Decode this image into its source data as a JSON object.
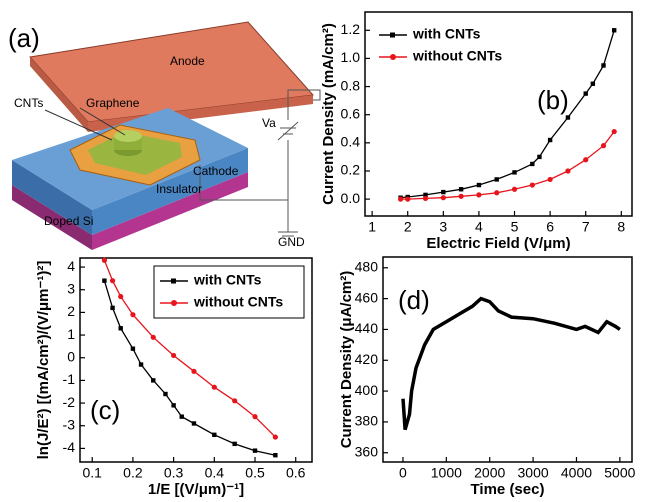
{
  "diagram": {
    "panel_label": "(a)",
    "anode": "Anode",
    "graphene": "Graphene",
    "cnts": "CNTs",
    "va": "Va",
    "cathode": "Cathode",
    "insulator": "Insulator",
    "doped_si": "Doped Si",
    "gnd": "GND"
  },
  "chart_data": [
    {
      "type": "line",
      "label": "(b)",
      "x_label": "Electric Field (V/μm)",
      "y_label": "Current Density (mA/cm²)",
      "xlim": [
        0.8,
        8.3
      ],
      "xticks": [
        1,
        2,
        3,
        4,
        5,
        6,
        7,
        8
      ],
      "ylim": [
        -0.12,
        1.33
      ],
      "yticks": [
        {
          "value": 0,
          "label": "0.0"
        },
        0.2,
        0.4,
        0.6,
        0.8,
        {
          "value": 1,
          "label": "1.0"
        },
        1.2
      ],
      "legend": "upper left",
      "series": [
        {
          "name": "with CNTs",
          "color": "#000000",
          "marker": "square",
          "x": [
            1.8,
            2.0,
            2.5,
            3.0,
            3.5,
            4.0,
            4.5,
            5.0,
            5.5,
            5.7,
            6.0,
            6.5,
            7.0,
            7.2,
            7.5,
            7.8
          ],
          "values": [
            0.01,
            0.015,
            0.03,
            0.05,
            0.07,
            0.1,
            0.14,
            0.19,
            0.25,
            0.3,
            0.42,
            0.58,
            0.75,
            0.82,
            0.95,
            1.2
          ]
        },
        {
          "name": "without CNTs",
          "color": "#e8141b",
          "marker": "circle",
          "x": [
            1.8,
            2.0,
            2.5,
            3.0,
            3.5,
            4.0,
            4.5,
            5.0,
            5.5,
            6.0,
            6.5,
            7.0,
            7.5,
            7.8
          ],
          "values": [
            0.0,
            0.0,
            0.005,
            0.01,
            0.02,
            0.03,
            0.045,
            0.07,
            0.1,
            0.14,
            0.2,
            0.28,
            0.38,
            0.48
          ]
        }
      ]
    },
    {
      "type": "line",
      "label": "(c)",
      "x_label": "1/E [(V/μm)⁻¹]",
      "y_label": "ln(J/E²) [(mA/cm²)/(V/μm⁻¹)²]",
      "xlim": [
        0.07,
        0.64
      ],
      "xticks": [
        0.1,
        0.2,
        0.3,
        0.4,
        0.5,
        0.6
      ],
      "ylim": [
        -4.6,
        4.4
      ],
      "yticks": [
        -4,
        -3,
        -2,
        -1,
        0,
        1,
        2,
        3,
        4
      ],
      "legend": "upper right",
      "series": [
        {
          "name": "with CNTs",
          "color": "#000000",
          "marker": "square",
          "x": [
            0.13,
            0.15,
            0.17,
            0.2,
            0.22,
            0.25,
            0.28,
            0.3,
            0.32,
            0.35,
            0.4,
            0.45,
            0.5,
            0.55
          ],
          "values": [
            3.4,
            2.2,
            1.3,
            0.4,
            -0.3,
            -1,
            -1.6,
            -2.1,
            -2.6,
            -2.9,
            -3.4,
            -3.8,
            -4.1,
            -4.3
          ]
        },
        {
          "name": "without CNTs",
          "color": "#e8141b",
          "marker": "circle",
          "x": [
            0.13,
            0.15,
            0.17,
            0.2,
            0.25,
            0.3,
            0.35,
            0.4,
            0.45,
            0.5,
            0.55
          ],
          "values": [
            4.3,
            3.4,
            2.7,
            1.9,
            0.9,
            0.1,
            -0.6,
            -1.3,
            -1.9,
            -2.6,
            -3.5
          ]
        }
      ]
    },
    {
      "type": "line",
      "label": "(d)",
      "x_label": "Time (sec)",
      "y_label": "Current Density (μA/cm²)",
      "xlim": [
        -460,
        5280
      ],
      "xticks": [
        0,
        1000,
        2000,
        3000,
        4000,
        5000
      ],
      "ylim": [
        354,
        487
      ],
      "yticks": [
        360,
        380,
        400,
        420,
        440,
        460,
        480
      ],
      "series": [
        {
          "color": "#000000",
          "x": [
            0,
            50,
            150,
            200,
            300,
            500,
            700,
            1000,
            1300,
            1600,
            1800,
            2000,
            2200,
            2500,
            3000,
            3500,
            4000,
            4200,
            4500,
            4700,
            4900,
            5000
          ],
          "values": [
            395,
            375,
            385,
            400,
            415,
            430,
            440,
            445,
            450,
            455,
            460,
            458,
            452,
            448,
            447,
            444,
            440,
            442,
            438,
            445,
            442,
            440
          ]
        }
      ]
    }
  ]
}
